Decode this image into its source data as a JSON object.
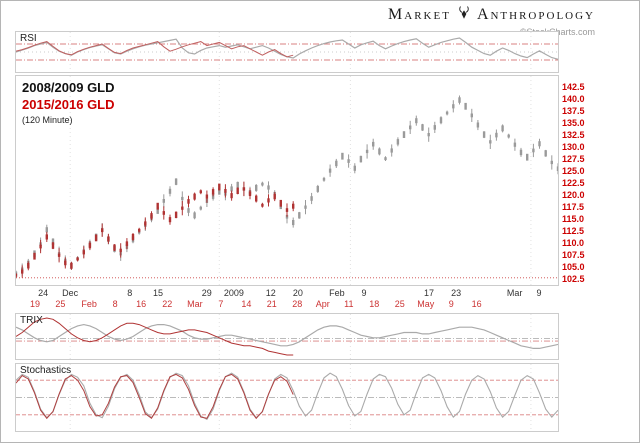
{
  "header": {
    "brand_first": "Market",
    "brand_second": "Anthropology",
    "credit": "©StockCharts.com"
  },
  "colors": {
    "gray_series": "#9a9a9a",
    "red_series": "#b03333",
    "axis_red": "#cc0000",
    "x_row1": "#333333",
    "x_row2": "#cc3333",
    "title1": "#111111",
    "title2": "#cc0000"
  },
  "chart_data": {
    "type": "candlestick",
    "title": "2008/2009 GLD vs 2015/2016 GLD",
    "interval": "(120 Minute)",
    "x_count": 89,
    "grid_x": [
      0.1,
      0.375,
      0.617,
      0.95
    ],
    "y_ticks": [
      142.5,
      140.0,
      137.5,
      135.0,
      132.5,
      130.0,
      127.5,
      125.0,
      122.5,
      120.0,
      117.5,
      115.0,
      112.5,
      110.0,
      107.5,
      105.0,
      102.5
    ],
    "x_axis": {
      "row1": [
        {
          "t": "24",
          "x": 0.05
        },
        {
          "t": "Dec",
          "x": 0.1
        },
        {
          "t": "8",
          "x": 0.21
        },
        {
          "t": "15",
          "x": 0.262
        },
        {
          "t": "29",
          "x": 0.352
        },
        {
          "t": "2009",
          "x": 0.402
        },
        {
          "t": "12",
          "x": 0.47
        },
        {
          "t": "20",
          "x": 0.52
        },
        {
          "t": "Feb",
          "x": 0.592
        },
        {
          "t": "9",
          "x": 0.642
        },
        {
          "t": "17",
          "x": 0.762
        },
        {
          "t": "23",
          "x": 0.812
        },
        {
          "t": "Mar",
          "x": 0.92
        },
        {
          "t": "9",
          "x": 0.965
        }
      ],
      "row2": [
        {
          "t": "19",
          "x": 0.035
        },
        {
          "t": "25",
          "x": 0.082
        },
        {
          "t": "Feb",
          "x": 0.135
        },
        {
          "t": "8",
          "x": 0.183
        },
        {
          "t": "16",
          "x": 0.231
        },
        {
          "t": "22",
          "x": 0.279
        },
        {
          "t": "Mar",
          "x": 0.33
        },
        {
          "t": "7",
          "x": 0.378
        },
        {
          "t": "14",
          "x": 0.425
        },
        {
          "t": "21",
          "x": 0.472
        },
        {
          "t": "28",
          "x": 0.519
        },
        {
          "t": "Apr",
          "x": 0.566
        },
        {
          "t": "11",
          "x": 0.614
        },
        {
          "t": "18",
          "x": 0.661
        },
        {
          "t": "25",
          "x": 0.708
        },
        {
          "t": "May",
          "x": 0.756
        },
        {
          "t": "9",
          "x": 0.803
        },
        {
          "t": "16",
          "x": 0.85
        }
      ]
    },
    "price": {
      "ylim": [
        101,
        144.5
      ],
      "levels": [
        {
          "v": 102.5,
          "color": "#cc4444",
          "dash": "1,2"
        }
      ],
      "series": [
        {
          "id": "gld-2008",
          "name": "2008/2009 GLD",
          "color": "#9a9a9a",
          "values": [
            103.5,
            104.2,
            105.5,
            107.5,
            109.5,
            112.5,
            110.0,
            107.5,
            106.0,
            105.0,
            106.5,
            108.0,
            109.5,
            111.0,
            112.5,
            110.5,
            108.5,
            107.5,
            109.0,
            110.5,
            112.0,
            113.5,
            115.0,
            116.5,
            118.5,
            120.5,
            122.5,
            119.0,
            116.5,
            115.5,
            117.0,
            118.5,
            119.5,
            120.5,
            120.0,
            121.0,
            121.8,
            121.0,
            120.3,
            121.2,
            122.0,
            121.3,
            119.8,
            117.5,
            115.2,
            114.0,
            115.5,
            117.2,
            119.0,
            121.0,
            123.0,
            124.8,
            126.3,
            127.8,
            126.8,
            125.3,
            127.2,
            128.8,
            130.3,
            128.8,
            127.3,
            129.0,
            130.8,
            132.3,
            133.8,
            135.2,
            133.8,
            132.3,
            133.8,
            135.3,
            136.8,
            138.2,
            139.5,
            138.2,
            136.3,
            134.3,
            132.3,
            130.8,
            132.2,
            133.6,
            132.0,
            130.2,
            128.6,
            127.6,
            129.0,
            130.4,
            128.4,
            126.5,
            125.2
          ]
        },
        {
          "id": "gld-2015",
          "name": "2015/2016 GLD",
          "color": "#b03333",
          "values": [
            103.0,
            103.8,
            105.0,
            107.0,
            109.0,
            111.0,
            109.2,
            107.2,
            105.6,
            105.0,
            106.4,
            107.8,
            109.2,
            110.8,
            112.4,
            110.6,
            108.8,
            108.2,
            109.6,
            111.0,
            112.4,
            113.8,
            115.4,
            117.4,
            116.0,
            114.6,
            115.6,
            117.0,
            118.4,
            119.4,
            120.4,
            119.4,
            120.4,
            121.4,
            120.6,
            119.6,
            120.6,
            121.0,
            120.0,
            119.0,
            117.6,
            118.6,
            119.4,
            118.0,
            116.6,
            117.4
          ]
        }
      ]
    },
    "rsi": {
      "label": "RSI",
      "ylim": [
        0,
        100
      ],
      "levels": [
        {
          "v": 70,
          "color": "#d98080",
          "dash": "6,2,1,2"
        },
        {
          "v": 50,
          "color": "#cccccc",
          "dash": "1,3"
        },
        {
          "v": 30,
          "color": "#d98080",
          "dash": "6,2,1,2"
        }
      ],
      "series": [
        {
          "id": "rsi-2008",
          "color": "#aaaaaa",
          "width": 1.2,
          "values": [
            50,
            55,
            60,
            66,
            70,
            74,
            62,
            52,
            46,
            42,
            50,
            56,
            61,
            65,
            68,
            58,
            48,
            45,
            52,
            58,
            63,
            67,
            70,
            73,
            76,
            79,
            82,
            60,
            48,
            45,
            54,
            60,
            63,
            66,
            62,
            65,
            68,
            63,
            58,
            62,
            66,
            60,
            52,
            44,
            38,
            35,
            45,
            53,
            60,
            66,
            71,
            75,
            78,
            80,
            70,
            60,
            68,
            73,
            77,
            66,
            58,
            65,
            71,
            76,
            80,
            83,
            72,
            62,
            68,
            74,
            78,
            82,
            85,
            74,
            62,
            54,
            46,
            42,
            52,
            60,
            54,
            46,
            40,
            36,
            45,
            53,
            44,
            36,
            32
          ]
        },
        {
          "id": "rsi-2015",
          "color": "#c06060",
          "width": 1,
          "values": [
            52,
            56,
            61,
            67,
            72,
            76,
            64,
            53,
            46,
            43,
            51,
            57,
            62,
            66,
            70,
            59,
            49,
            46,
            54,
            60,
            64,
            68,
            72,
            76,
            63,
            52,
            57,
            63,
            68,
            72,
            76,
            66,
            70,
            74,
            66,
            58,
            63,
            66,
            58,
            50,
            42,
            50,
            56,
            46,
            38,
            42
          ]
        }
      ]
    },
    "trix": {
      "label": "TRIX",
      "ylim": [
        -1.5,
        1.9
      ],
      "levels": [
        {
          "v": 0.05,
          "color": "#bbbbbb",
          "dash": "6,2,1,2"
        },
        {
          "v": -0.15,
          "color": "#d98080",
          "dash": "6,2,1,2"
        }
      ],
      "series": [
        {
          "id": "trix-2008",
          "color": "#aaaaaa",
          "width": 1.2,
          "values": [
            0.9,
            0.7,
            0.4,
            0.1,
            -0.1,
            -0.2,
            -0.1,
            0.2,
            0.5,
            0.8,
            1.0,
            1.1,
            1.0,
            0.8,
            0.5,
            0.2,
            0.0,
            -0.1,
            0.0,
            0.2,
            0.5,
            0.8,
            1.0,
            1.1,
            1.1,
            1.0,
            0.8,
            0.6,
            0.3,
            0.1,
            0.0,
            0.0,
            0.1,
            0.2,
            0.3,
            0.3,
            0.2,
            0.1,
            0.0,
            -0.1,
            -0.2,
            -0.3,
            -0.4,
            -0.5,
            -0.5,
            -0.4,
            -0.2,
            0.1,
            0.4,
            0.7,
            0.9,
            1.0,
            1.0,
            0.9,
            0.7,
            0.5,
            0.3,
            0.2,
            0.1,
            0.1,
            0.2,
            0.3,
            0.4,
            0.5,
            0.5,
            0.5,
            0.4,
            0.4,
            0.5,
            0.6,
            0.7,
            0.8,
            0.9,
            0.9,
            0.9,
            0.8,
            0.7,
            0.5,
            0.3,
            0.1,
            -0.1,
            -0.3,
            -0.5,
            -0.6,
            -0.7,
            -0.7,
            -0.6,
            -0.5,
            -0.4
          ]
        },
        {
          "id": "trix-2015",
          "color": "#b03333",
          "width": 1,
          "values": [
            0.2,
            0.5,
            0.9,
            1.3,
            1.5,
            1.6,
            1.5,
            1.2,
            0.8,
            0.4,
            0.1,
            -0.1,
            -0.2,
            -0.1,
            0.1,
            0.4,
            0.7,
            1.0,
            1.2,
            1.2,
            1.1,
            0.9,
            0.7,
            0.5,
            0.4,
            0.4,
            0.5,
            0.6,
            0.7,
            0.7,
            0.6,
            0.5,
            0.3,
            0.1,
            -0.1,
            -0.3,
            -0.4,
            -0.5,
            -0.5,
            -0.6,
            -0.7,
            -0.9,
            -1.0,
            -1.1,
            -1.2,
            -1.2
          ]
        }
      ]
    },
    "stochastics": {
      "label": "Stochastics",
      "ylim": [
        -8,
        108
      ],
      "levels": [
        {
          "v": 80,
          "color": "#d98080",
          "dash": "4,2"
        },
        {
          "v": 50,
          "color": "#bbbbbb",
          "dash": "6,2,1,2"
        },
        {
          "v": 20,
          "color": "#d98080",
          "dash": "4,2"
        }
      ],
      "series": [
        {
          "id": "stoch-2008",
          "color": "#aaaaaa",
          "width": 1.1,
          "values": [
            80,
            90,
            85,
            60,
            30,
            15,
            25,
            55,
            80,
            90,
            85,
            70,
            40,
            20,
            15,
            35,
            65,
            85,
            90,
            80,
            55,
            25,
            15,
            30,
            60,
            85,
            92,
            88,
            70,
            40,
            18,
            12,
            30,
            62,
            86,
            92,
            85,
            60,
            30,
            15,
            25,
            55,
            82,
            90,
            84,
            62,
            35,
            18,
            28,
            58,
            84,
            92,
            86,
            64,
            36,
            18,
            26,
            56,
            82,
            90,
            86,
            66,
            38,
            20,
            28,
            58,
            84,
            90,
            84,
            62,
            34,
            16,
            26,
            56,
            80,
            88,
            82,
            60,
            32,
            16,
            26,
            54,
            80,
            88,
            82,
            58,
            30,
            16,
            28
          ]
        },
        {
          "id": "stoch-2015",
          "color": "#b04040",
          "width": 1,
          "values": [
            75,
            88,
            82,
            58,
            28,
            14,
            26,
            56,
            82,
            88,
            80,
            62,
            34,
            18,
            20,
            40,
            68,
            86,
            88,
            76,
            50,
            22,
            14,
            32,
            62,
            86,
            90,
            84,
            64,
            36,
            16,
            14,
            34,
            64,
            86,
            90,
            82,
            58,
            28,
            14,
            26,
            56,
            80,
            86,
            78,
            55
          ]
        }
      ]
    }
  }
}
